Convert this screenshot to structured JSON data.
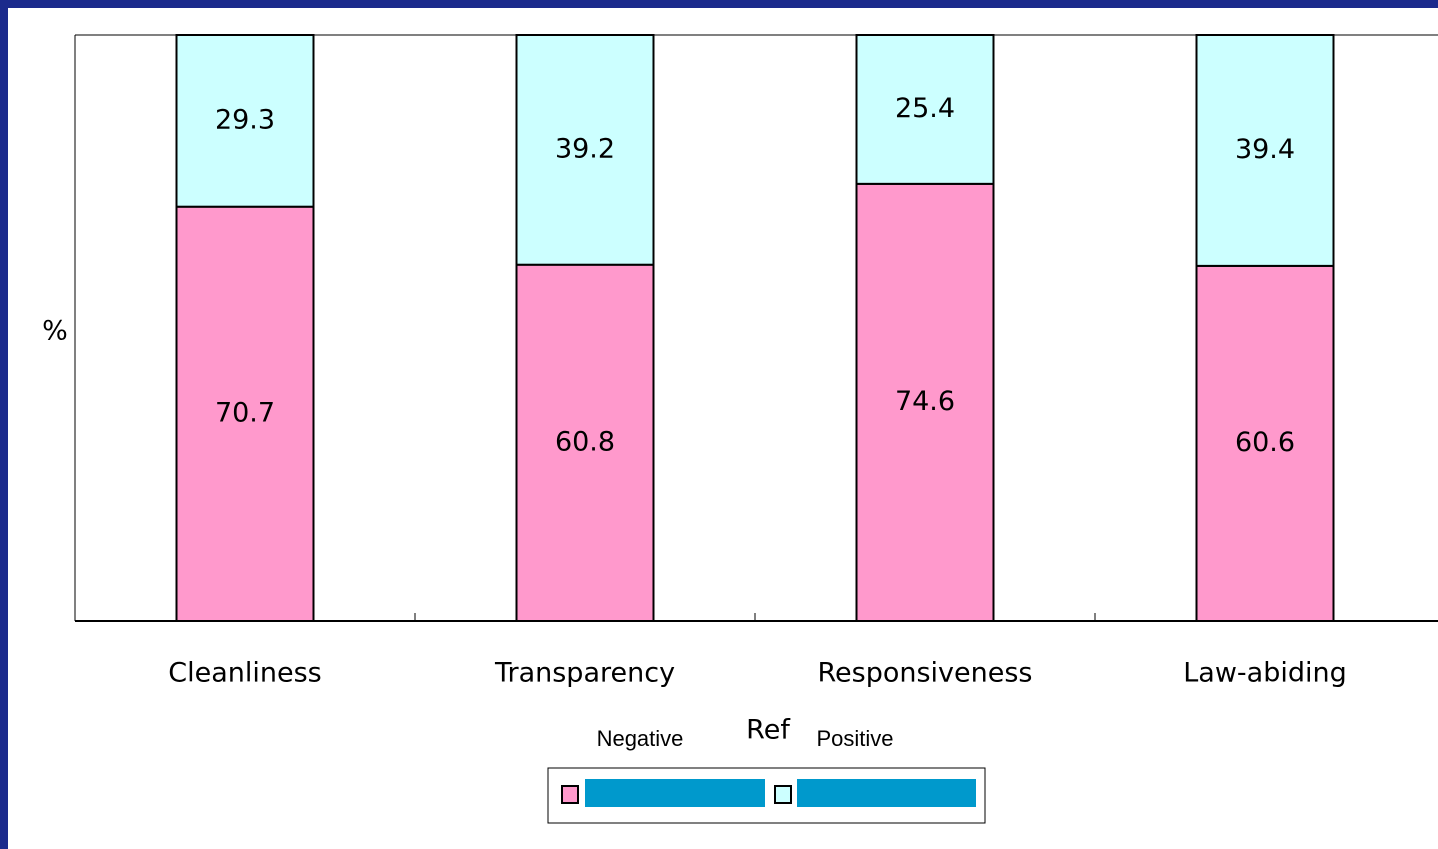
{
  "chart_data": {
    "type": "stacked_bar",
    "ylabel": "%",
    "categories": [
      "Cleanliness",
      "Transparency",
      "Responsiveness",
      "Law-abiding"
    ],
    "series": [
      {
        "name": "Negative",
        "color": "#ff99cc",
        "values": [
          70.7,
          60.8,
          74.6,
          60.6
        ]
      },
      {
        "name": "Positive",
        "color": "#ccffff",
        "values": [
          29.3,
          39.2,
          25.4,
          39.4
        ]
      }
    ],
    "legend_title": "Ref",
    "ylim": [
      0,
      100
    ]
  }
}
